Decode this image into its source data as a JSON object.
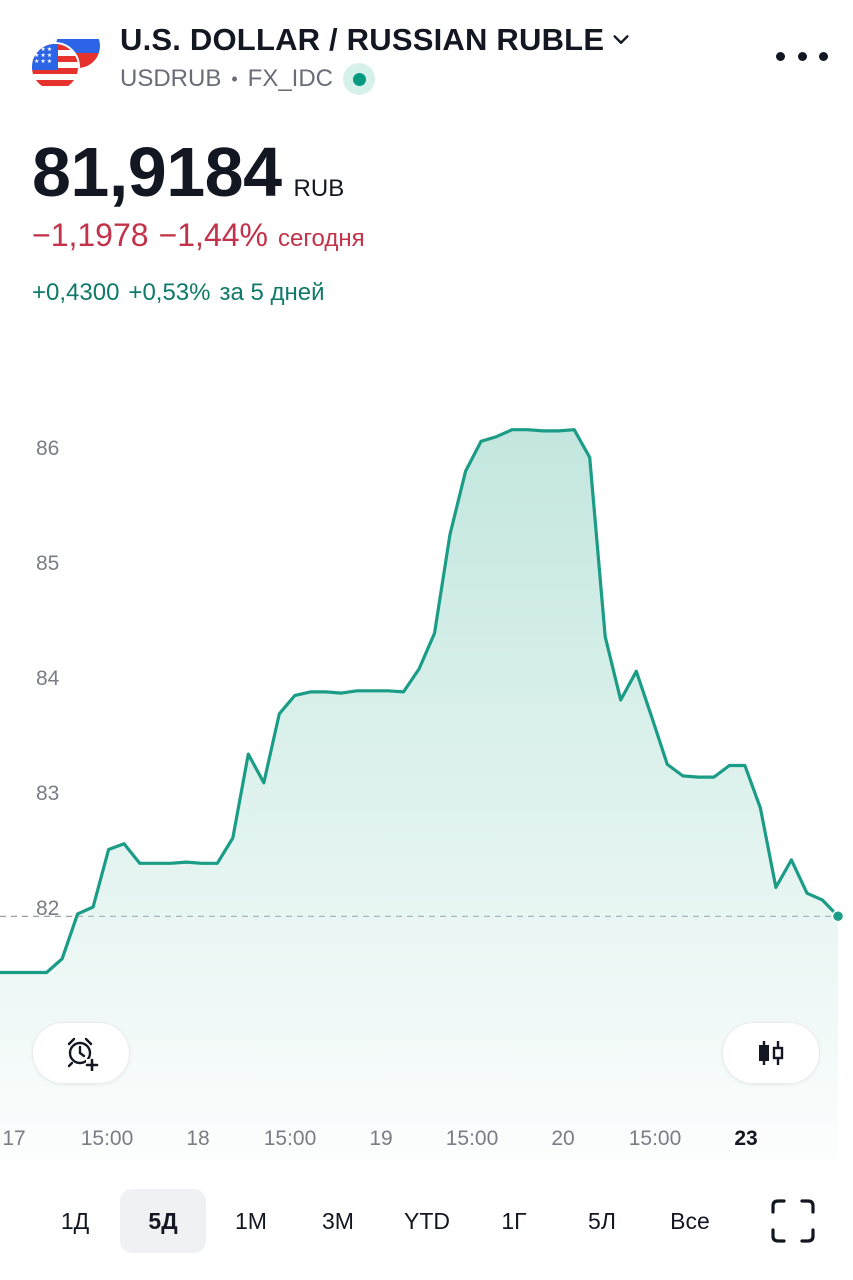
{
  "symbol": {
    "title": "U.S. DOLLAR / RUSSIAN RUBLE",
    "ticker": "USDRUB",
    "separator": "•",
    "source": "FX_IDC"
  },
  "quote": {
    "price": "81,9184",
    "currency": "RUB",
    "change_abs": "−1,1978",
    "change_pct": "−1,44%",
    "change_label": "сегодня",
    "change5d_abs": "+0,4300",
    "change5d_pct": "+0,53%",
    "change5d_label": "за 5 дней"
  },
  "colors": {
    "line": "#1a9c86",
    "fill": "#bfe5dc",
    "negative": "#c2334a",
    "positive": "#0f7a6a",
    "live": "#089981"
  },
  "icons": {
    "menu": "more-dots-icon",
    "alarm": "alarm-add-icon",
    "candles": "candlestick-icon",
    "fullscreen": "fullscreen-icon",
    "chevron": "chevron-down-icon"
  },
  "chart_data": {
    "type": "area",
    "y_ticks": [
      "86",
      "85",
      "84",
      "83",
      "82"
    ],
    "x_ticks": [
      "17",
      "15:00",
      "18",
      "15:00",
      "19",
      "15:00",
      "20",
      "15:00",
      "23"
    ],
    "x_tick_bold": [
      false,
      false,
      false,
      false,
      false,
      false,
      false,
      false,
      true
    ],
    "last_value": 81.9184,
    "values": [
      81.43,
      81.43,
      81.43,
      81.43,
      81.55,
      81.94,
      82.0,
      82.5,
      82.55,
      82.38,
      82.38,
      82.38,
      82.39,
      82.38,
      82.38,
      82.6,
      83.33,
      83.08,
      83.68,
      83.84,
      83.87,
      83.87,
      83.86,
      83.88,
      83.88,
      83.88,
      83.87,
      84.07,
      84.38,
      85.24,
      85.79,
      86.05,
      86.09,
      86.15,
      86.15,
      86.14,
      86.14,
      86.15,
      85.91,
      84.35,
      83.8,
      84.05,
      83.65,
      83.24,
      83.14,
      83.13,
      83.13,
      83.23,
      83.23,
      82.86,
      82.17,
      82.41,
      82.12,
      82.06,
      81.92
    ],
    "ylim": [
      81,
      86.6
    ]
  },
  "ranges": {
    "items": [
      "1Д",
      "5Д",
      "1М",
      "3М",
      "YTD",
      "1Г",
      "5Л",
      "Все"
    ],
    "active": "5Д"
  }
}
